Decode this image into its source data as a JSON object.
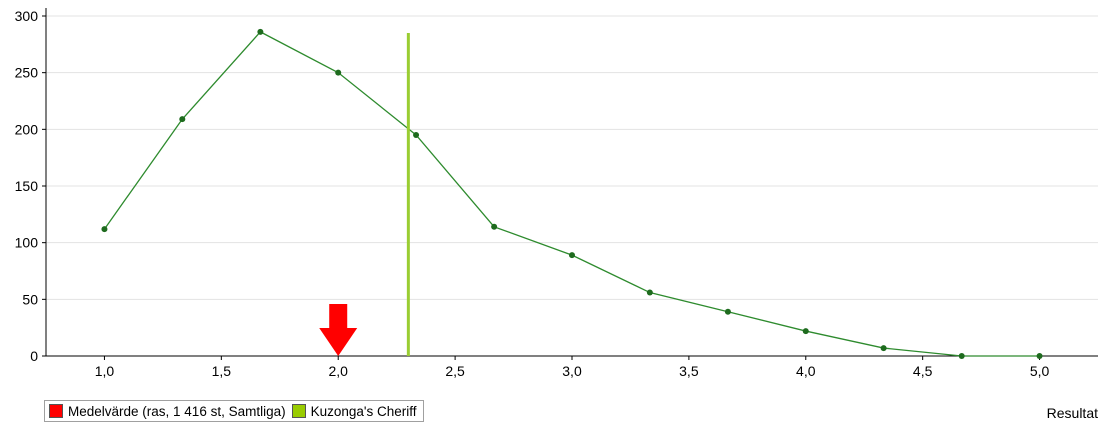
{
  "chart_data": {
    "type": "line",
    "xlabel": "Resultat",
    "ylabel": "",
    "xlim": [
      0.75,
      5.25
    ],
    "ylim": [
      0,
      300
    ],
    "grid": true,
    "x_ticks": [
      "1,0",
      "1,5",
      "2,0",
      "2,5",
      "3,0",
      "3,5",
      "4,0",
      "4,5",
      "5,0"
    ],
    "x_tick_values": [
      1.0,
      1.5,
      2.0,
      2.5,
      3.0,
      3.5,
      4.0,
      4.5,
      5.0
    ],
    "y_ticks": [
      "0",
      "50",
      "100",
      "150",
      "200",
      "250",
      "300"
    ],
    "y_tick_values": [
      0,
      50,
      100,
      150,
      200,
      250,
      300
    ],
    "series": [
      {
        "color": "#2e8b2e",
        "x": [
          1.0,
          1.333,
          1.667,
          2.0,
          2.333,
          2.667,
          3.0,
          3.333,
          3.667,
          4.0,
          4.333,
          4.667,
          5.0
        ],
        "y": [
          112,
          209,
          286,
          250,
          195,
          114,
          89,
          56,
          39,
          22,
          7,
          0,
          0
        ]
      }
    ],
    "markers": [
      {
        "name": "Medelvärde (ras, 1 416 st, Samtliga)",
        "type": "arrow",
        "x": 2.0,
        "color": "#ff0000"
      },
      {
        "name": "Kuzonga's Cheriff",
        "type": "vline",
        "x": 2.3,
        "y_top": 285,
        "color": "#9acd32"
      }
    ],
    "legend_placement": "bottom-left",
    "legend": [
      {
        "label": "Medelvärde (ras, 1 416 st, Samtliga)",
        "color": "#ff0000"
      },
      {
        "label": "Kuzonga's Cheriff",
        "color": "#99cc00"
      }
    ]
  }
}
